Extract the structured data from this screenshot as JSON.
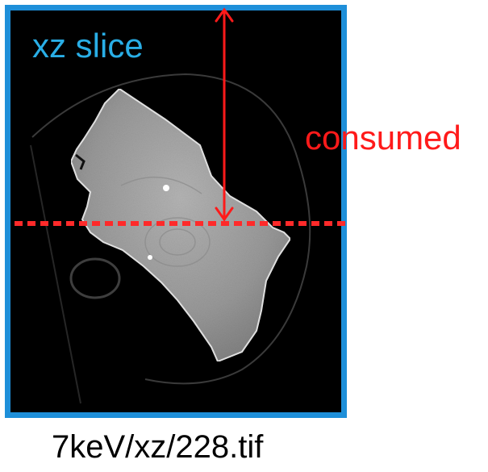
{
  "panel": {
    "title": "xz slice",
    "title_color": "#29aee6",
    "frame_color": "#1e8fd9",
    "background_color": "#000000"
  },
  "annotation": {
    "label": "consumed",
    "color": "#ff1a1a"
  },
  "caption": "7keV/xz/228.tif"
}
